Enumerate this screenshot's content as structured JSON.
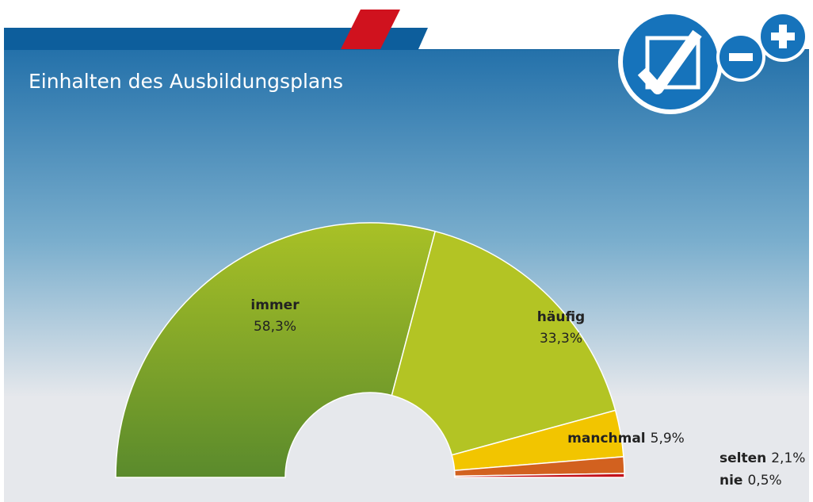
{
  "chart_data": {
    "type": "pie",
    "title": "Einhalten des Ausbildungsplans",
    "categories": [
      "immer",
      "häufig",
      "manchmal",
      "selten",
      "nie"
    ],
    "values": [
      58.3,
      33.3,
      5.9,
      2.1,
      0.5
    ],
    "value_labels": [
      "58,3%",
      "33,3%",
      "5,9%",
      "2,1%",
      "0,5%"
    ],
    "colors": [
      "#7aa42a",
      "#b3c424",
      "#f2c500",
      "#d2611f",
      "#c3121c"
    ]
  }
}
